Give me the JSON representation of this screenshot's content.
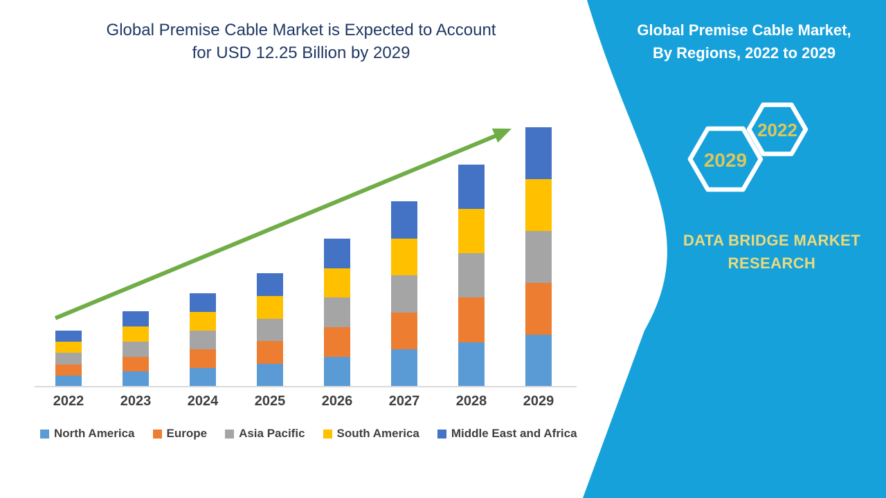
{
  "main": {
    "title_line1": "Global Premise Cable Market is Expected to Account",
    "title_line2": "for USD 12.25 Billion by 2029"
  },
  "side_panel": {
    "title_line1": "Global Premise Cable Market,",
    "title_line2": "By Regions, 2022 to 2029",
    "hexagons": [
      {
        "year": "2029"
      },
      {
        "year": "2022"
      }
    ],
    "brand_line1": "DATA BRIDGE MARKET",
    "brand_line2": "RESEARCH"
  },
  "colors": {
    "panel_blue": "#17A1DB",
    "title_navy": "#1F3864",
    "arrow_green": "#70AD47",
    "axis_line": "#D9D9D9",
    "label_gray": "#3F3F3F",
    "hex_year_gold": "#D9C75F",
    "brand_gold": "#EBDA7D"
  },
  "chart_data": {
    "type": "bar",
    "stacked": true,
    "title": "Global Premise Cable Market is Expected to Account for USD 12.25 Billion by 2029",
    "unit": "USD Billion",
    "categories": [
      "2022",
      "2023",
      "2024",
      "2025",
      "2026",
      "2027",
      "2028",
      "2029"
    ],
    "series": [
      {
        "name": "North America",
        "color": "#5B9BD5",
        "values": [
          0.53,
          0.71,
          0.88,
          1.07,
          1.4,
          1.75,
          2.1,
          2.45
        ]
      },
      {
        "name": "Europe",
        "color": "#ED7D31",
        "values": [
          0.53,
          0.71,
          0.88,
          1.07,
          1.4,
          1.75,
          2.1,
          2.45
        ]
      },
      {
        "name": "Asia Pacific",
        "color": "#A5A5A5",
        "values": [
          0.53,
          0.71,
          0.88,
          1.07,
          1.4,
          1.75,
          2.1,
          2.45
        ]
      },
      {
        "name": "South America",
        "color": "#FFC000",
        "values": [
          0.53,
          0.71,
          0.88,
          1.07,
          1.4,
          1.75,
          2.1,
          2.45
        ]
      },
      {
        "name": "Middle East and Africa",
        "color": "#4472C4",
        "values": [
          0.53,
          0.71,
          0.88,
          1.07,
          1.4,
          1.75,
          2.1,
          2.45
        ]
      }
    ],
    "totals_estimated": [
      2.65,
      3.55,
      4.4,
      5.35,
      7.0,
      8.75,
      10.5,
      12.25
    ],
    "ylim": [
      0,
      12.25
    ],
    "grid": false,
    "axes_labeled": false,
    "legend_position": "bottom",
    "annotations": [
      "green upward trend arrow from 2022 toward 2029"
    ]
  }
}
